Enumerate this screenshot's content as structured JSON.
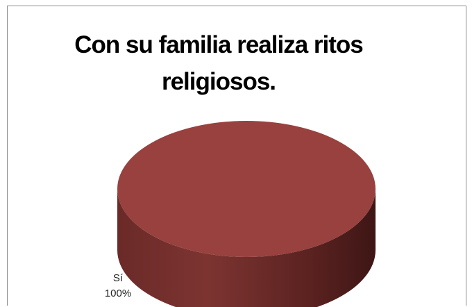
{
  "chart_data": {
    "type": "pie",
    "title": "Con su familia realiza ritos religiosos.",
    "categories": [
      "Sí"
    ],
    "values": [
      100
    ],
    "data_labels": [
      {
        "category": "Sí",
        "percent": "100%"
      }
    ],
    "colors": {
      "slice_top": "#98413e",
      "slice_side_light": "#7d3431",
      "slice_side_dark": "#4a1c1a"
    },
    "legend": "none",
    "style": "3d-pie"
  }
}
